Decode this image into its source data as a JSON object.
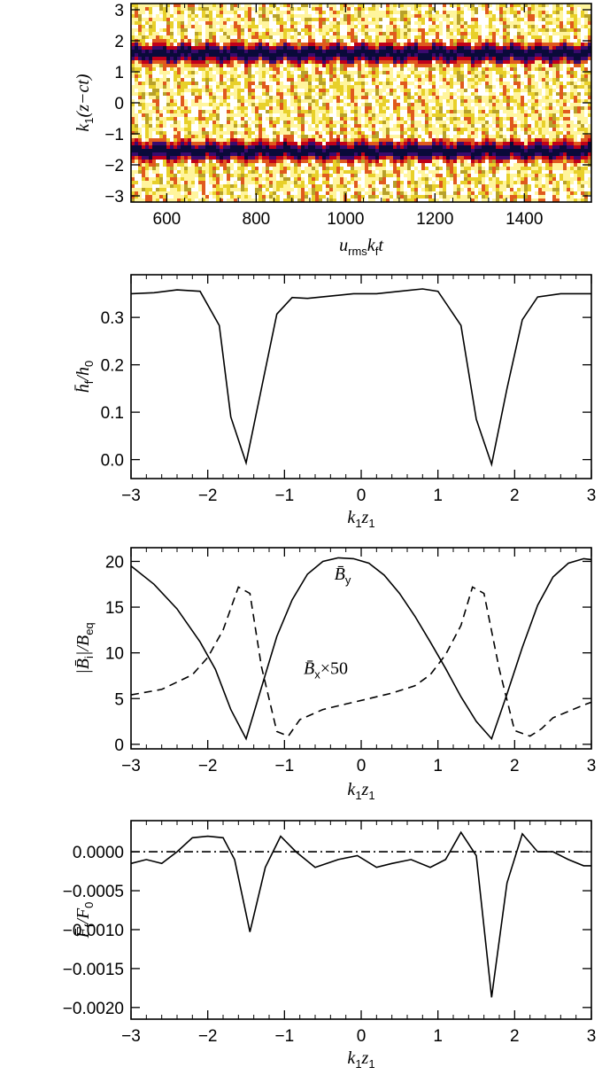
{
  "chart_data": [
    {
      "type": "heatmap",
      "title": "",
      "xlabel_parts": [
        "u",
        "rms",
        "k",
        "f",
        "t"
      ],
      "ylabel_parts": [
        "k",
        "1",
        "(z−ct)"
      ],
      "xlim": [
        520,
        1550
      ],
      "ylim": [
        -3.2,
        3.2
      ],
      "xticks": [
        600,
        800,
        1000,
        1200,
        1400
      ],
      "yticks": [
        -3,
        -2,
        -1,
        0,
        1,
        2,
        3
      ],
      "dark_bands_y": [
        1.65,
        -1.5
      ],
      "colormap": [
        "#ffffff",
        "#fff59d",
        "#e8d02a",
        "#b8a12a",
        "#e05a1e",
        "#c0001a",
        "#3a0a6e",
        "#0a0a3a"
      ]
    },
    {
      "type": "line",
      "xlabel_parts": [
        "k",
        "1",
        "z",
        "1"
      ],
      "ylabel_parts": [
        "h̄",
        "f",
        "/h",
        "0"
      ],
      "xlim": [
        -3,
        3
      ],
      "ylim": [
        -0.04,
        0.39
      ],
      "xticks": [
        -3,
        -2,
        -1,
        0,
        1,
        2,
        3
      ],
      "yticks": [
        0.0,
        0.1,
        0.2,
        0.3
      ],
      "ytick_labels": [
        "0.0",
        "0.1",
        "0.2",
        "0.3"
      ],
      "series": [
        {
          "style": "solid",
          "x": [
            -3.0,
            -2.7,
            -2.4,
            -2.1,
            -1.85,
            -1.7,
            -1.5,
            -1.3,
            -1.1,
            -0.9,
            -0.7,
            -0.4,
            -0.1,
            0.2,
            0.5,
            0.8,
            1.0,
            1.3,
            1.5,
            1.7,
            1.9,
            2.1,
            2.3,
            2.6,
            3.0
          ],
          "y": [
            0.35,
            0.352,
            0.358,
            0.355,
            0.283,
            0.09,
            -0.007,
            0.15,
            0.307,
            0.342,
            0.34,
            0.345,
            0.35,
            0.35,
            0.355,
            0.36,
            0.355,
            0.283,
            0.085,
            -0.01,
            0.15,
            0.295,
            0.343,
            0.35,
            0.35
          ]
        }
      ]
    },
    {
      "type": "line",
      "xlabel_parts": [
        "k",
        "1",
        "z",
        "1"
      ],
      "ylabel_parts": [
        "|B̄",
        "i",
        "|/B",
        "eq"
      ],
      "xlim": [
        -3,
        3
      ],
      "ylim": [
        -0.5,
        21.5
      ],
      "xticks": [
        -3,
        -2,
        -1,
        0,
        1,
        2,
        3
      ],
      "yticks": [
        0,
        5,
        10,
        15,
        20
      ],
      "annotations": [
        {
          "text_parts": [
            "B̄",
            "y",
            ""
          ],
          "x": -0.35,
          "y": 18.0
        },
        {
          "text_parts": [
            "B̄",
            "x",
            "×50"
          ],
          "x": -0.75,
          "y": 7.7
        }
      ],
      "series": [
        {
          "style": "solid",
          "x": [
            -3.0,
            -2.7,
            -2.4,
            -2.1,
            -1.9,
            -1.7,
            -1.5,
            -1.3,
            -1.1,
            -0.9,
            -0.7,
            -0.5,
            -0.3,
            -0.1,
            0.1,
            0.3,
            0.5,
            0.7,
            0.9,
            1.1,
            1.3,
            1.5,
            1.7,
            1.9,
            2.1,
            2.3,
            2.5,
            2.7,
            2.9,
            3.0
          ],
          "y": [
            19.5,
            17.5,
            14.8,
            11.2,
            8.2,
            3.8,
            0.6,
            6.2,
            11.8,
            15.8,
            18.6,
            20.0,
            20.4,
            20.3,
            19.8,
            18.5,
            16.5,
            14.0,
            11.2,
            8.3,
            5.2,
            2.5,
            0.6,
            5.5,
            10.6,
            15.2,
            18.3,
            19.8,
            20.3,
            20.2
          ]
        },
        {
          "style": "dashed",
          "x": [
            -3.0,
            -2.6,
            -2.2,
            -2.0,
            -1.8,
            -1.6,
            -1.45,
            -1.3,
            -1.1,
            -0.95,
            -0.8,
            -0.5,
            -0.2,
            0.1,
            0.4,
            0.7,
            0.9,
            1.1,
            1.3,
            1.45,
            1.6,
            1.8,
            2.0,
            2.2,
            2.35,
            2.5,
            2.7,
            2.9,
            3.0
          ],
          "y": [
            5.4,
            6.0,
            7.6,
            9.5,
            12.5,
            17.2,
            16.5,
            8.5,
            1.4,
            0.9,
            2.7,
            3.8,
            4.4,
            5.0,
            5.6,
            6.4,
            7.6,
            9.8,
            13.0,
            17.2,
            16.5,
            8.2,
            1.5,
            0.9,
            1.7,
            2.9,
            3.6,
            4.3,
            4.6
          ]
        }
      ]
    },
    {
      "type": "line",
      "xlabel_parts": [
        "k",
        "1",
        "z",
        "1"
      ],
      "ylabel_parts": [
        "F̄",
        "f",
        "/F",
        "0"
      ],
      "xlim": [
        -3,
        3
      ],
      "ylim": [
        -0.00215,
        0.0004
      ],
      "xticks": [
        -3,
        -2,
        -1,
        0,
        1,
        2,
        3
      ],
      "yticks": [
        0.0,
        -0.0005,
        -0.001,
        -0.0015,
        -0.002
      ],
      "ytick_labels": [
        "0.0000",
        "−0.0005",
        "−0.0010",
        "−0.0015",
        "−0.0020"
      ],
      "series": [
        {
          "style": "solid",
          "x": [
            -3.0,
            -2.8,
            -2.6,
            -2.4,
            -2.2,
            -2.0,
            -1.8,
            -1.65,
            -1.45,
            -1.25,
            -1.05,
            -0.85,
            -0.6,
            -0.3,
            -0.05,
            0.2,
            0.4,
            0.65,
            0.9,
            1.1,
            1.3,
            1.5,
            1.7,
            1.9,
            2.1,
            2.3,
            2.5,
            2.7,
            2.9,
            3.0
          ],
          "y": [
            -0.00015,
            -0.0001,
            -0.00015,
            0.0,
            0.00018,
            0.0002,
            0.00018,
            -0.0001,
            -0.00103,
            -0.0002,
            0.0002,
            0.0,
            -0.0002,
            -0.0001,
            -5e-05,
            -0.0002,
            -0.00015,
            -0.0001,
            -0.0002,
            -0.0001,
            0.00025,
            -5e-05,
            -0.00187,
            -0.0004,
            0.00023,
            0.0,
            0.0,
            -0.0001,
            -0.00018,
            -0.00018
          ]
        },
        {
          "style": "dashdot",
          "x": [
            -3.0,
            3.0
          ],
          "y": [
            0.0,
            0.0
          ]
        }
      ]
    }
  ]
}
